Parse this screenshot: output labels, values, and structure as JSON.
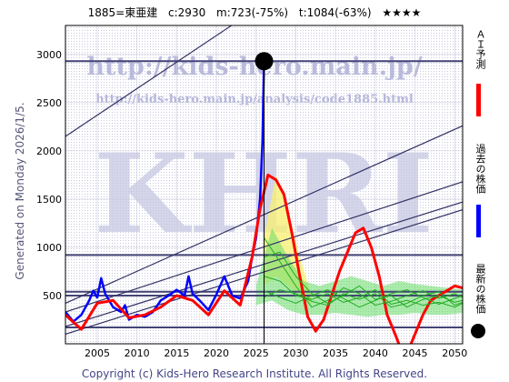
{
  "header": {
    "code_name": "1885=東亜建",
    "current": "c:2930",
    "min_info": "m:723(-75%)",
    "target_info": "t:1084(-63%)",
    "stars": "★★★★"
  },
  "watermark": {
    "url_main": "http://kids-hero.main.jp/",
    "url_sub": "http://kids-hero.main.jp/analysis/code1885.html",
    "logo": "KHRI"
  },
  "generated_label": "Generated on Monday 2026/1/5.",
  "footer": "Copyright (c) Kids-Hero Research Institute. All Rights Reserved.",
  "legend": {
    "ai": "ＡＩ予測",
    "past": "過去の株価",
    "latest": "最新の株価"
  },
  "colors": {
    "ai": "#ff0000",
    "past": "#0000ff",
    "sim": "#22aa22",
    "band_green": "#66dd66",
    "band_yellow": "#f8f070",
    "trend": "#333366",
    "hline": "#444477",
    "latest": "#000000"
  },
  "chart_data": {
    "type": "line",
    "title": "1885=東亜建",
    "xlim": [
      2001,
      2051
    ],
    "ylim": [
      0,
      3300
    ],
    "xticks": [
      2005,
      2010,
      2015,
      2020,
      2025,
      2030,
      2035,
      2040,
      2045,
      2050
    ],
    "yticks": [
      500,
      1000,
      1500,
      2000,
      2500,
      3000
    ],
    "grid": true,
    "latest_point": {
      "x": 2026.0,
      "y": 2930
    },
    "horizontal_lines": [
      2930,
      920,
      540,
      500,
      170
    ],
    "trend_lines": [
      {
        "x": [
          2001,
          2051
        ],
        "y": [
          2150,
          4900
        ]
      },
      {
        "x": [
          2001,
          2051
        ],
        "y": [
          420,
          2260
        ]
      },
      {
        "x": [
          2001,
          2051
        ],
        "y": [
          330,
          1680
        ]
      },
      {
        "x": [
          2001,
          2051
        ],
        "y": [
          180,
          1470
        ]
      },
      {
        "x": [
          2001,
          2051
        ],
        "y": [
          100,
          1390
        ]
      }
    ],
    "series": [
      {
        "name": "過去の株価",
        "x": [
          2001,
          2002,
          2003,
          2004,
          2004.5,
          2005,
          2005.5,
          2006,
          2007,
          2008,
          2008.5,
          2009,
          2010,
          2011,
          2012,
          2013,
          2014,
          2015,
          2016,
          2016.5,
          2017,
          2018,
          2019,
          2020,
          2021,
          2022,
          2023,
          2024,
          2024.5,
          2025,
          2025.5,
          2025.8,
          2026
        ],
        "y": [
          330,
          230,
          300,
          450,
          550,
          480,
          680,
          520,
          380,
          330,
          400,
          250,
          300,
          280,
          330,
          450,
          500,
          560,
          500,
          700,
          520,
          440,
          350,
          510,
          700,
          500,
          470,
          650,
          900,
          1100,
          1500,
          2100,
          2930
        ]
      },
      {
        "name": "ＡＩ予測",
        "x": [
          2001,
          2003,
          2005,
          2007,
          2009,
          2011,
          2013,
          2015,
          2017,
          2019,
          2021,
          2023,
          2024.5,
          2025.5,
          2026.5,
          2027.5,
          2028.5,
          2029.5,
          2030.5,
          2031.5,
          2032.5,
          2033.5,
          2034.5,
          2035.5,
          2036.5,
          2037.5,
          2038.5,
          2039.5,
          2040.5,
          2041.5,
          2042.5,
          2043.2,
          2044,
          2045,
          2046,
          2047,
          2048,
          2049,
          2050,
          2051
        ],
        "y": [
          300,
          150,
          420,
          450,
          270,
          300,
          380,
          500,
          450,
          300,
          550,
          400,
          900,
          1400,
          1750,
          1700,
          1550,
          1150,
          700,
          280,
          130,
          250,
          500,
          750,
          950,
          1150,
          1200,
          1000,
          700,
          300,
          100,
          -50,
          -100,
          100,
          300,
          450,
          500,
          550,
          600,
          580
        ]
      },
      {
        "name": "sim-1",
        "x": [
          2026,
          2028,
          2030,
          2032,
          2034,
          2036,
          2038,
          2040,
          2042,
          2044,
          2046,
          2048,
          2050,
          2051
        ],
        "y": [
          700,
          650,
          500,
          460,
          520,
          430,
          480,
          560,
          410,
          450,
          400,
          430,
          380,
          420
        ]
      },
      {
        "name": "sim-2",
        "x": [
          2026,
          2028,
          2030,
          2032,
          2034,
          2036,
          2038,
          2040,
          2042,
          2044,
          2046,
          2048,
          2050,
          2051
        ],
        "y": [
          900,
          950,
          700,
          520,
          420,
          500,
          600,
          460,
          500,
          380,
          460,
          500,
          430,
          450
        ]
      },
      {
        "name": "sim-3",
        "x": [
          2026,
          2028,
          2030,
          2032,
          2034,
          2036,
          2038,
          2040,
          2042,
          2044,
          2046,
          2048,
          2050,
          2051
        ],
        "y": [
          550,
          480,
          420,
          500,
          560,
          470,
          380,
          450,
          520,
          560,
          480,
          410,
          470,
          500
        ]
      },
      {
        "name": "sim-4",
        "x": [
          2026,
          2028,
          2030,
          2032,
          2034,
          2036,
          2038,
          2040,
          2042,
          2044,
          2046,
          2048,
          2050,
          2051
        ],
        "y": [
          1100,
          850,
          600,
          380,
          450,
          580,
          520,
          400,
          440,
          500,
          550,
          470,
          520,
          480
        ]
      },
      {
        "name": "sim-5",
        "x": [
          2026,
          2028,
          2030,
          2032,
          2034,
          2036,
          2038,
          2040,
          2042,
          2044,
          2046,
          2048,
          2050,
          2051
        ],
        "y": [
          480,
          560,
          520,
          440,
          400,
          520,
          460,
          520,
          380,
          420,
          500,
          540,
          400,
          430
        ]
      }
    ],
    "band_green": {
      "x": [
        2025,
        2027,
        2029,
        2031,
        2033,
        2035,
        2037,
        2039,
        2041,
        2043,
        2045,
        2047,
        2049,
        2051
      ],
      "upper": [
        600,
        1200,
        900,
        650,
        600,
        650,
        700,
        650,
        600,
        650,
        620,
        600,
        580,
        560
      ],
      "lower": [
        400,
        450,
        350,
        300,
        300,
        320,
        300,
        280,
        300,
        300,
        320,
        300,
        300,
        320
      ]
    },
    "band_yellow": {
      "x": [
        2026,
        2027.5,
        2029,
        2030.5,
        2032
      ],
      "upper": [
        1100,
        1750,
        1400,
        900,
        500
      ],
      "lower": [
        600,
        700,
        600,
        500,
        400
      ]
    }
  }
}
